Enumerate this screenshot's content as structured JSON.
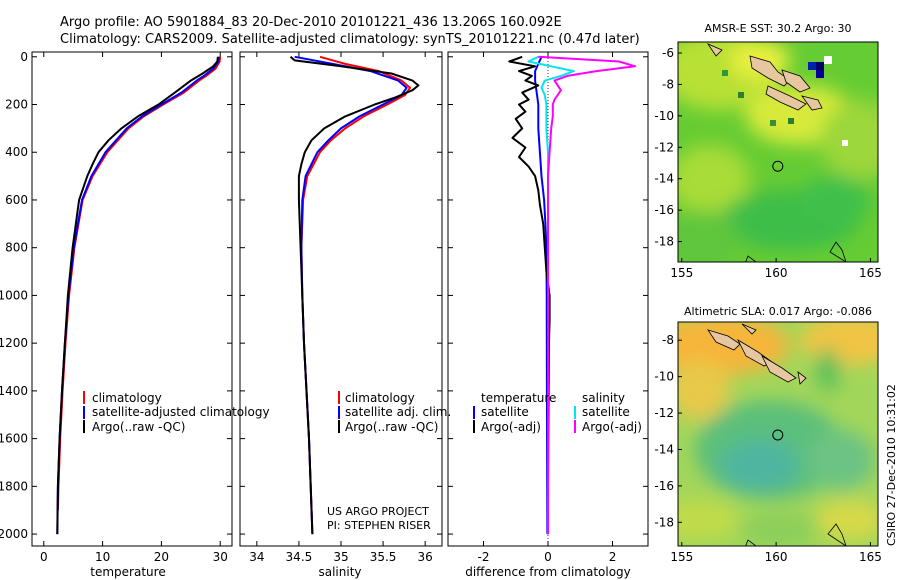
{
  "header": {
    "line1": "Argo profile: AO 5901884_83 20-Dec-2010 20101221_436 13.206S 160.092E",
    "line2": "Climatology: CARS2009. Satellite-adjusted climatology: synTS_20101221.nc (0.47d later)"
  },
  "colors": {
    "climatology": "#ff0000",
    "satellite": "#0000ff",
    "argo": "#000000",
    "sal_satellite": "#00e5ee",
    "sal_argo": "#ff00ff"
  },
  "chart_data": [
    {
      "id": "temperature",
      "type": "line",
      "xlabel": "temperature",
      "xlim": [
        -2,
        32
      ],
      "xticks": [
        0,
        10,
        20,
        30
      ],
      "ylim": [
        2050,
        -20
      ],
      "yticks": [
        0,
        200,
        400,
        600,
        800,
        1000,
        1200,
        1400,
        1600,
        1800,
        2000
      ],
      "legend": [
        "climatology",
        "satellite-adjusted climatology",
        "Argo(..raw -QC)"
      ],
      "series": [
        {
          "name": "climatology",
          "color_key": "climatology",
          "depth": [
            0,
            20,
            50,
            80,
            100,
            150,
            200,
            250,
            300,
            400,
            500,
            600,
            800,
            1000,
            1200,
            1400,
            1600,
            1800,
            1900
          ],
          "values": [
            30.0,
            29.9,
            29.2,
            27.6,
            26.4,
            23.8,
            20.3,
            17.0,
            14.4,
            10.8,
            8.3,
            6.6,
            5.2,
            4.3,
            3.7,
            3.2,
            2.8,
            2.5,
            2.4
          ]
        },
        {
          "name": "satellite-adjusted climatology",
          "color_key": "satellite",
          "depth": [
            0,
            20,
            50,
            80,
            100,
            150,
            200,
            250,
            300,
            400,
            500,
            600,
            800,
            1000,
            1200,
            1400,
            1600,
            1800,
            2000
          ],
          "values": [
            29.8,
            29.7,
            28.8,
            27.2,
            26.0,
            23.4,
            20.0,
            16.7,
            14.1,
            10.5,
            8.1,
            6.5,
            5.1,
            4.2,
            3.6,
            3.1,
            2.7,
            2.4,
            2.3
          ]
        },
        {
          "name": "Argo(..raw -QC)",
          "color_key": "argo",
          "depth": [
            0,
            20,
            40,
            70,
            100,
            150,
            200,
            250,
            300,
            350,
            400,
            450,
            500,
            600,
            800,
            1000,
            1200,
            1400,
            1600,
            1800,
            2000
          ],
          "values": [
            29.6,
            29.5,
            28.8,
            27.0,
            25.0,
            22.3,
            19.5,
            16.0,
            13.2,
            11.0,
            9.3,
            8.3,
            7.4,
            6.0,
            4.9,
            4.1,
            3.6,
            3.1,
            2.7,
            2.4,
            2.3
          ]
        }
      ]
    },
    {
      "id": "salinity",
      "type": "line",
      "xlabel": "salinity",
      "xlim": [
        33.8,
        36.2
      ],
      "xticks": [
        34,
        34.5,
        35,
        35.5,
        36
      ],
      "ylim": [
        2050,
        -20
      ],
      "legend": [
        "climatology",
        "satellite adj. clim.",
        "Argo(..raw -QC)"
      ],
      "annotation": [
        "US ARGO PROJECT",
        "PI: STEPHEN RISER"
      ],
      "series": [
        {
          "name": "climatology",
          "color_key": "climatology",
          "depth": [
            0,
            30,
            60,
            100,
            130,
            160,
            200,
            250,
            300,
            350,
            400,
            500,
            600,
            800,
            1000,
            1200,
            1400,
            1600,
            1800,
            2000
          ],
          "values": [
            34.75,
            35.05,
            35.45,
            35.72,
            35.82,
            35.76,
            35.55,
            35.27,
            35.05,
            34.88,
            34.75,
            34.6,
            34.55,
            34.53,
            34.54,
            34.56,
            34.59,
            34.62,
            34.64,
            34.66
          ]
        },
        {
          "name": "satellite adj. clim.",
          "color_key": "satellite",
          "depth": [
            0,
            30,
            60,
            100,
            130,
            160,
            200,
            250,
            300,
            350,
            400,
            500,
            600,
            800,
            1000,
            1200,
            1400,
            1600,
            1800,
            2000
          ],
          "values": [
            34.45,
            34.9,
            35.35,
            35.68,
            35.78,
            35.72,
            35.5,
            35.22,
            35.0,
            34.85,
            34.72,
            34.58,
            34.54,
            34.53,
            34.54,
            34.56,
            34.59,
            34.62,
            34.64,
            34.66
          ]
        },
        {
          "name": "Argo(..raw -QC)",
          "color_key": "argo",
          "depth": [
            0,
            15,
            40,
            70,
            100,
            120,
            140,
            170,
            200,
            250,
            300,
            350,
            400,
            450,
            500,
            600,
            800,
            1000,
            1200,
            1400,
            1600,
            1800,
            2000
          ],
          "values": [
            34.4,
            34.45,
            35.0,
            35.6,
            35.85,
            35.92,
            35.85,
            35.65,
            35.4,
            35.05,
            34.8,
            34.65,
            34.57,
            34.53,
            34.5,
            34.5,
            34.52,
            34.54,
            34.56,
            34.59,
            34.62,
            34.64,
            34.66
          ]
        }
      ]
    },
    {
      "id": "difference",
      "type": "line",
      "xlabel": "difference from climatology",
      "xlim": [
        -3.1,
        3.1
      ],
      "xticks": [
        -2,
        0,
        2
      ],
      "ylim": [
        2050,
        -20
      ],
      "legend_titles": [
        "temperature",
        "salinity"
      ],
      "legend": [
        "satellite",
        "Argo(-adj)",
        "satellite",
        "Argo(-adj)"
      ],
      "series": [
        {
          "name": "temperature satellite",
          "color_key": "satellite",
          "depth": [
            0,
            30,
            60,
            100,
            150,
            200,
            250,
            300,
            400,
            500,
            600,
            700,
            800,
            1000,
            1500,
            2000
          ],
          "values": [
            -0.2,
            -0.3,
            -0.4,
            -0.4,
            -0.35,
            -0.3,
            -0.3,
            -0.3,
            -0.25,
            -0.2,
            -0.12,
            -0.08,
            -0.05,
            -0.04,
            -0.03,
            -0.02
          ]
        },
        {
          "name": "temperature Argo(-adj)",
          "color_key": "argo",
          "depth": [
            0,
            20,
            40,
            60,
            80,
            100,
            120,
            150,
            180,
            200,
            230,
            260,
            300,
            340,
            380,
            420,
            460,
            500,
            560,
            620,
            700,
            800,
            900,
            1000,
            1100,
            1200,
            1400,
            1600,
            1800,
            2000
          ],
          "values": [
            -0.8,
            -1.2,
            -0.4,
            -0.9,
            -0.5,
            -0.7,
            -0.3,
            -0.8,
            -0.6,
            -0.9,
            -0.7,
            -1.0,
            -0.8,
            -1.1,
            -0.7,
            -0.9,
            -0.6,
            -0.4,
            -0.3,
            -0.25,
            -0.15,
            -0.1,
            -0.05,
            0.05,
            0.05,
            0.03,
            0.02,
            0.01,
            0.0,
            0.0
          ]
        },
        {
          "name": "salinity satellite",
          "color_key": "sal_satellite",
          "depth": [
            0,
            20,
            40,
            60,
            80,
            100,
            130,
            160,
            200,
            250,
            300,
            400,
            500,
            600,
            800,
            1000,
            1500,
            2000
          ],
          "values": [
            -0.3,
            -0.6,
            0.1,
            0.8,
            0.4,
            -0.1,
            -0.2,
            -0.1,
            -0.05,
            -0.05,
            -0.05,
            0.0,
            0.0,
            0.0,
            0.0,
            0.0,
            0.0,
            0.0
          ]
        },
        {
          "name": "salinity Argo(-adj)",
          "color_key": "sal_argo",
          "depth": [
            0,
            20,
            40,
            60,
            80,
            100,
            120,
            140,
            160,
            180,
            200,
            250,
            300,
            400,
            500,
            600,
            800,
            1000,
            1500,
            2000
          ],
          "values": [
            -0.3,
            2.2,
            2.7,
            1.5,
            0.6,
            0.2,
            0.3,
            0.4,
            0.3,
            0.2,
            0.15,
            0.15,
            0.1,
            0.05,
            0.0,
            0.0,
            0.0,
            0.0,
            0.0,
            0.0
          ]
        }
      ]
    },
    {
      "id": "sst_map",
      "type": "heatmap",
      "title": "AMSR-E SST: 30.2 Argo: 30",
      "xlim": [
        154.8,
        165.4
      ],
      "ylim": [
        -19.3,
        -5.3
      ],
      "xticks": [
        155,
        160,
        165
      ],
      "yticks": [
        -6,
        -8,
        -10,
        -12,
        -14,
        -16,
        -18
      ],
      "profile_location": [
        160.092,
        -13.206
      ]
    },
    {
      "id": "sla_map",
      "type": "heatmap",
      "title": "Altimetric SLA: 0.017 Argo: -0.086",
      "xlim": [
        154.8,
        165.4
      ],
      "ylim": [
        -19.3,
        -7.0
      ],
      "xticks": [
        155,
        160,
        165
      ],
      "yticks": [
        -8,
        -10,
        -12,
        -14,
        -16,
        -18
      ],
      "profile_location": [
        160.092,
        -13.206
      ]
    }
  ],
  "credit": "CSIRO 27-Dec-2010 10:31:02"
}
